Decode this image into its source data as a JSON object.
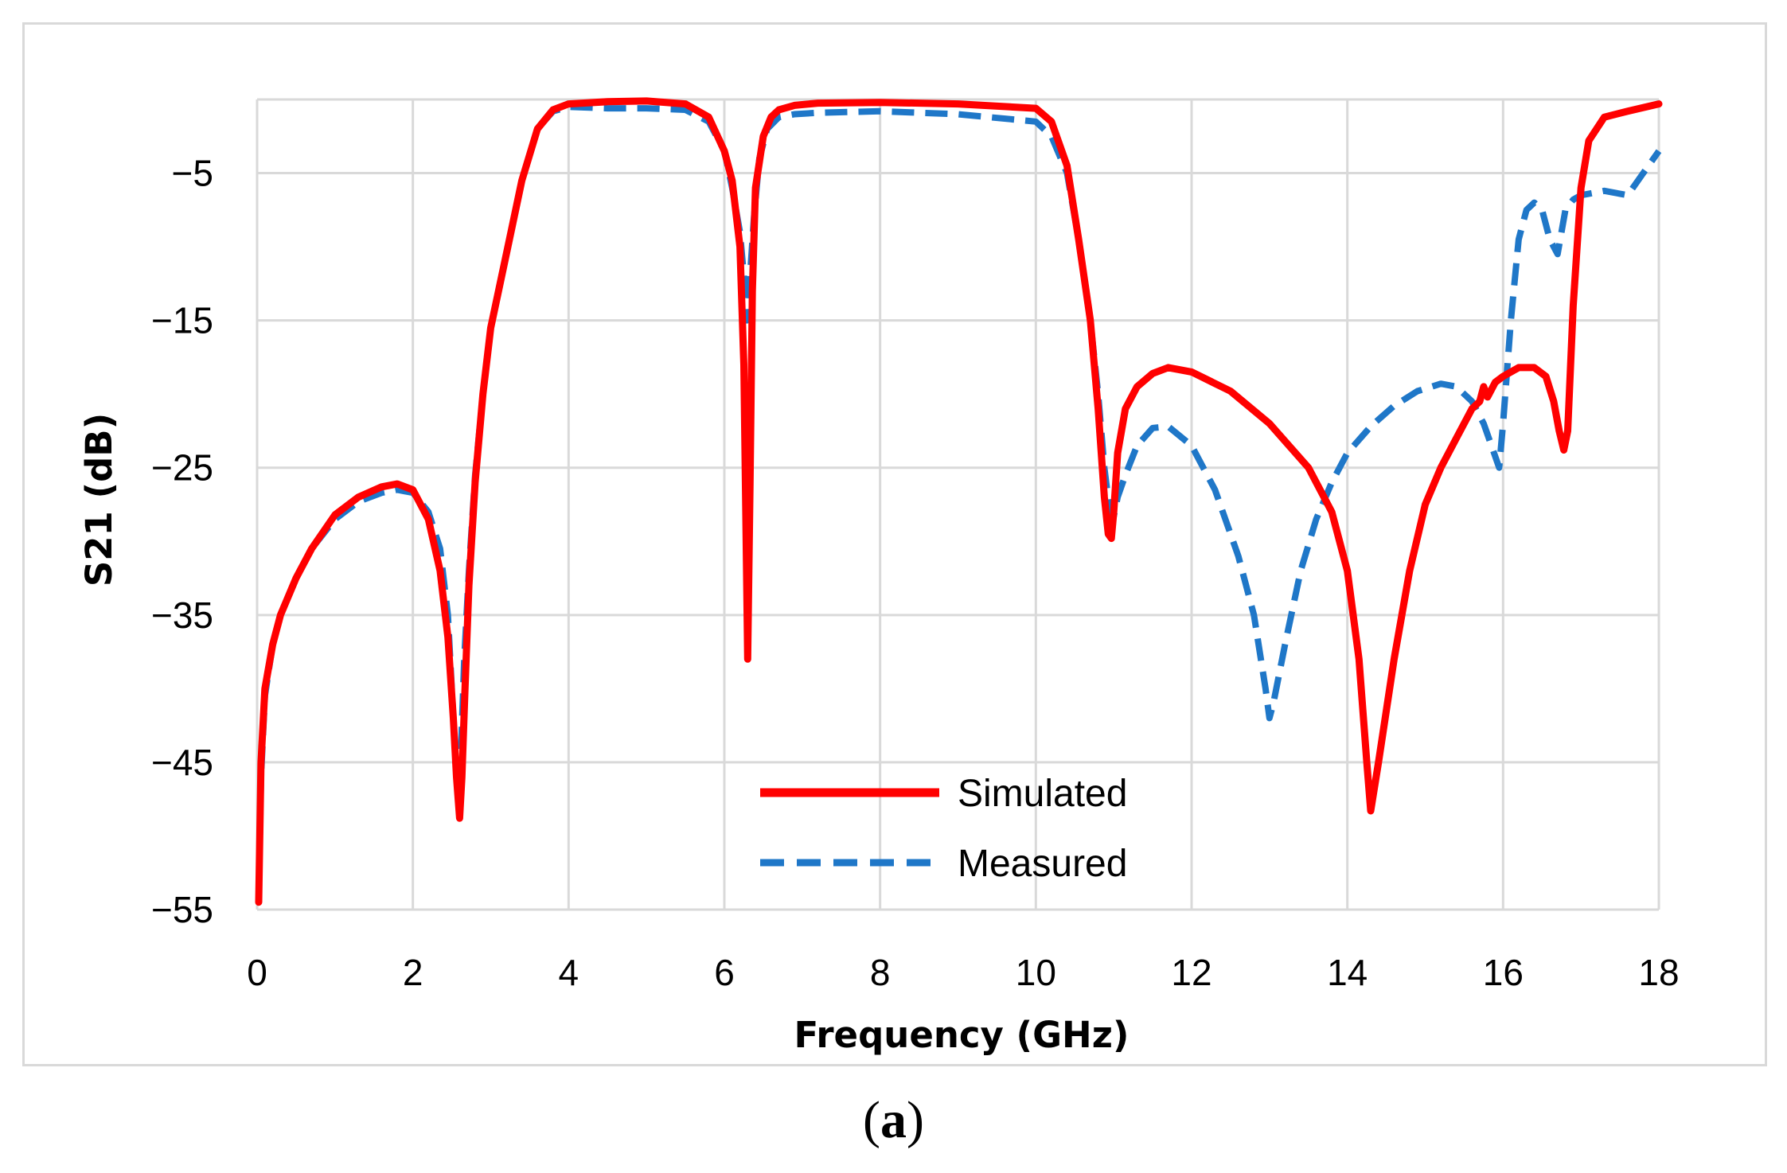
{
  "panel_label": {
    "open": "(",
    "letter": "a",
    "close": ")"
  },
  "colors": {
    "simulated": "#ff0000",
    "measured": "#1f77c8",
    "grid": "#d9d9d9",
    "frame": "#d9d9d9"
  },
  "chart_data": {
    "type": "line",
    "xlabel": "Frequency (GHz)",
    "ylabel": "S21 (dB)",
    "xlim": [
      0,
      18
    ],
    "ylim": [
      -55,
      0
    ],
    "xticks": [
      0,
      2,
      4,
      6,
      8,
      10,
      12,
      14,
      16,
      18
    ],
    "xtick_labels": [
      "0",
      "2",
      "4",
      "6",
      "8",
      "10",
      "12",
      "14",
      "16",
      "18"
    ],
    "yticks": [
      -55,
      -45,
      -35,
      -25,
      -15,
      -5
    ],
    "ytick_labels": [
      "−55",
      "−45",
      "−35",
      "−25",
      "−15",
      "−5"
    ],
    "grid": true,
    "legend": "lower-center",
    "series": [
      {
        "name": "Simulated",
        "style": "solid",
        "color": "#ff0000",
        "x": [
          0.02,
          0.05,
          0.1,
          0.2,
          0.3,
          0.5,
          0.7,
          1.0,
          1.3,
          1.6,
          1.8,
          2.0,
          2.2,
          2.35,
          2.45,
          2.52,
          2.56,
          2.6,
          2.63,
          2.67,
          2.72,
          2.8,
          2.9,
          3.0,
          3.2,
          3.4,
          3.6,
          3.8,
          4.0,
          4.5,
          5.0,
          5.5,
          5.8,
          6.0,
          6.1,
          6.2,
          6.25,
          6.28,
          6.3,
          6.33,
          6.36,
          6.4,
          6.5,
          6.6,
          6.7,
          6.9,
          7.2,
          8.0,
          9.0,
          10.0,
          10.2,
          10.4,
          10.55,
          10.7,
          10.8,
          10.88,
          10.93,
          10.97,
          11.0,
          11.05,
          11.15,
          11.3,
          11.5,
          11.7,
          12.0,
          12.5,
          13.0,
          13.5,
          13.8,
          14.0,
          14.15,
          14.25,
          14.3,
          14.4,
          14.6,
          14.8,
          15.0,
          15.2,
          15.4,
          15.6,
          15.7,
          15.75,
          15.8,
          15.9,
          16.0,
          16.2,
          16.4,
          16.55,
          16.65,
          16.72,
          16.78,
          16.83,
          16.9,
          17.0,
          17.1,
          17.3,
          17.6,
          18.0
        ],
        "y": [
          -54.5,
          -45,
          -40,
          -37,
          -35,
          -32.5,
          -30.5,
          -28.2,
          -27,
          -26.3,
          -26.1,
          -26.5,
          -28.5,
          -32,
          -36.5,
          -42,
          -46,
          -48.8,
          -46,
          -40,
          -33,
          -26,
          -20,
          -15.5,
          -10.5,
          -5.5,
          -2,
          -0.7,
          -0.3,
          -0.15,
          -0.1,
          -0.3,
          -1.2,
          -3.5,
          -5.5,
          -10,
          -18,
          -30,
          -38,
          -26,
          -13,
          -6,
          -2.5,
          -1.2,
          -0.7,
          -0.4,
          -0.25,
          -0.2,
          -0.3,
          -0.6,
          -1.5,
          -4.5,
          -9.5,
          -15,
          -21,
          -27,
          -29.5,
          -29.8,
          -28,
          -24,
          -21,
          -19.5,
          -18.6,
          -18.2,
          -18.5,
          -19.8,
          -22,
          -25,
          -28,
          -32,
          -38,
          -45,
          -48.3,
          -45,
          -38,
          -32,
          -27.5,
          -25,
          -23,
          -21,
          -20.5,
          -19.5,
          -20.2,
          -19.2,
          -18.8,
          -18.2,
          -18.2,
          -18.8,
          -20.5,
          -22.5,
          -23.8,
          -22.5,
          -14,
          -6,
          -2.8,
          -1.2,
          -0.8,
          -0.3
        ]
      },
      {
        "name": "Measured",
        "style": "dashed",
        "color": "#1f77c8",
        "x": [
          0.02,
          0.05,
          0.1,
          0.2,
          0.3,
          0.5,
          0.7,
          1.0,
          1.3,
          1.6,
          1.8,
          2.0,
          2.2,
          2.35,
          2.45,
          2.5,
          2.54,
          2.58,
          2.62,
          2.66,
          2.72,
          2.8,
          2.9,
          3.0,
          3.2,
          3.4,
          3.6,
          3.8,
          4.0,
          4.5,
          5.0,
          5.5,
          5.8,
          6.0,
          6.1,
          6.2,
          6.25,
          6.29,
          6.33,
          6.38,
          6.45,
          6.55,
          6.7,
          6.9,
          7.2,
          8.0,
          9.0,
          10.0,
          10.2,
          10.4,
          10.55,
          10.7,
          10.8,
          10.88,
          10.95,
          11.0,
          11.05,
          11.15,
          11.3,
          11.5,
          11.7,
          12.0,
          12.3,
          12.6,
          12.8,
          12.95,
          13.0,
          13.05,
          13.2,
          13.4,
          13.6,
          13.8,
          14.0,
          14.3,
          14.6,
          14.9,
          15.2,
          15.4,
          15.6,
          15.75,
          15.85,
          15.95,
          16.0,
          16.1,
          16.2,
          16.3,
          16.4,
          16.5,
          16.6,
          16.7,
          16.75,
          16.8,
          16.9,
          17.0,
          17.3,
          17.6,
          17.8,
          18.0
        ],
        "y": [
          -54.5,
          -46,
          -40.5,
          -37,
          -35,
          -32.5,
          -30.5,
          -28.5,
          -27.3,
          -26.7,
          -26.5,
          -26.7,
          -28,
          -30.5,
          -35,
          -40,
          -44,
          -47,
          -44,
          -38,
          -32,
          -25.5,
          -20,
          -15.5,
          -10.5,
          -5.5,
          -2,
          -0.8,
          -0.5,
          -0.6,
          -0.6,
          -0.7,
          -1.5,
          -3.5,
          -6,
          -9,
          -12,
          -15,
          -12,
          -8,
          -4,
          -2,
          -1.2,
          -1,
          -0.9,
          -0.8,
          -1,
          -1.5,
          -2.5,
          -5,
          -9.5,
          -15,
          -20,
          -25,
          -28,
          -28.3,
          -27,
          -25.5,
          -23.5,
          -22.3,
          -22.2,
          -23.5,
          -26.5,
          -31,
          -35,
          -40,
          -42,
          -41,
          -37,
          -32,
          -28.5,
          -26,
          -24,
          -22.2,
          -20.8,
          -19.8,
          -19.3,
          -19.5,
          -20.5,
          -22,
          -23.5,
          -25,
          -22,
          -15,
          -9.5,
          -7.5,
          -7,
          -7.5,
          -9.5,
          -10.5,
          -9,
          -7.5,
          -6.8,
          -6.5,
          -6.2,
          -6.5,
          -5,
          -3.5
        ]
      }
    ]
  }
}
